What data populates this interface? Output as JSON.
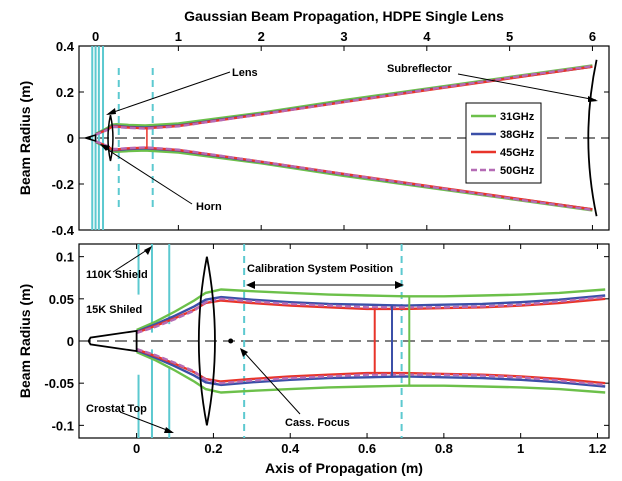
{
  "figure": {
    "title": "Gaussian Beam Propagation, HDPE Single Lens"
  },
  "colors": {
    "31GHz": "#6cc04a",
    "38GHz": "#3b4fa8",
    "45GHz": "#e8342a",
    "50GHz": "#b56bb5",
    "aperture": "#5cc9d0",
    "optics": "#000000"
  },
  "chart_data": [
    {
      "type": "line",
      "panel": "top",
      "title": "Gaussian Beam Propagation, HDPE Single Lens",
      "xlabel": "",
      "ylabel": "Beam Radius (m)",
      "xlim": [
        -0.2,
        6.2
      ],
      "ylim": [
        -0.4,
        0.4
      ],
      "xticks": [
        "0",
        "1",
        "2",
        "3",
        "4",
        "5",
        "6"
      ],
      "xtick_values": [
        0,
        1,
        2,
        3,
        4,
        5,
        6
      ],
      "yticks": [
        "-0.4",
        "-0.2",
        "0",
        "0.2",
        "0.4"
      ],
      "ytick_values": [
        -0.4,
        -0.2,
        0,
        0.2,
        0.4
      ],
      "legend": {
        "placement": "right",
        "entries": [
          "31GHz",
          "38GHz",
          "45GHz",
          "50GHz"
        ]
      },
      "annotations": [
        "Lens",
        "Horn",
        "Subreflector"
      ],
      "series": [
        {
          "name": "31GHz",
          "x": [
            0,
            0.15,
            0.2,
            0.25,
            0.4,
            0.6,
            1.0,
            2.0,
            3.0,
            4.0,
            5.0,
            6.0
          ],
          "y": [
            0.018,
            0.045,
            0.058,
            0.06,
            0.057,
            0.055,
            0.063,
            0.11,
            0.165,
            0.215,
            0.265,
            0.315
          ]
        },
        {
          "name": "38GHz",
          "x": [
            0,
            0.15,
            0.2,
            0.25,
            0.4,
            0.6,
            1.0,
            2.0,
            3.0,
            4.0,
            5.0,
            6.0
          ],
          "y": [
            0.016,
            0.04,
            0.053,
            0.053,
            0.048,
            0.045,
            0.055,
            0.105,
            0.158,
            0.21,
            0.26,
            0.31
          ]
        },
        {
          "name": "45GHz",
          "x": [
            0,
            0.15,
            0.2,
            0.25,
            0.4,
            0.6,
            1.0,
            2.0,
            3.0,
            4.0,
            5.0,
            6.0
          ],
          "y": [
            0.015,
            0.038,
            0.05,
            0.05,
            0.045,
            0.042,
            0.052,
            0.103,
            0.156,
            0.208,
            0.259,
            0.31
          ]
        },
        {
          "name": "50GHz",
          "x": [
            0,
            0.15,
            0.2,
            0.25,
            0.4,
            0.6,
            1.0,
            2.0,
            3.0,
            4.0,
            5.0,
            6.0
          ],
          "y": [
            0.014,
            0.036,
            0.048,
            0.048,
            0.044,
            0.041,
            0.051,
            0.103,
            0.157,
            0.21,
            0.262,
            0.313
          ]
        }
      ]
    },
    {
      "type": "line",
      "panel": "bottom",
      "title": "",
      "xlabel": "Axis of Propagation (m)",
      "ylabel": "Beam Radius (m)",
      "xlim": [
        -0.15,
        1.23
      ],
      "ylim": [
        -0.115,
        0.115
      ],
      "xticks": [
        "0",
        "0.2",
        "0.4",
        "0.6",
        "0.8",
        "1",
        "1.2"
      ],
      "xtick_values": [
        0,
        0.2,
        0.4,
        0.6,
        0.8,
        1.0,
        1.2
      ],
      "yticks": [
        "-0.1",
        "-0.05",
        "0",
        "0.05",
        "0.1"
      ],
      "ytick_values": [
        -0.1,
        -0.05,
        0,
        0.05,
        0.1
      ],
      "annotations": [
        "110K Shield",
        "15K Shiled",
        "Crostat Top",
        "Calibration System Position",
        "Cass. Focus"
      ],
      "series": [
        {
          "name": "31GHz",
          "x": [
            0,
            0.05,
            0.1,
            0.15,
            0.18,
            0.22,
            0.3,
            0.4,
            0.5,
            0.6,
            0.7,
            0.8,
            0.9,
            1.0,
            1.1,
            1.22
          ],
          "y": [
            0.013,
            0.023,
            0.035,
            0.048,
            0.057,
            0.061,
            0.059,
            0.057,
            0.055,
            0.054,
            0.053,
            0.053,
            0.054,
            0.055,
            0.057,
            0.061
          ]
        },
        {
          "name": "38GHz",
          "x": [
            0,
            0.05,
            0.1,
            0.15,
            0.18,
            0.22,
            0.3,
            0.4,
            0.5,
            0.6,
            0.7,
            0.8,
            0.9,
            1.0,
            1.1,
            1.22
          ],
          "y": [
            0.011,
            0.02,
            0.03,
            0.041,
            0.049,
            0.052,
            0.049,
            0.046,
            0.044,
            0.043,
            0.042,
            0.043,
            0.044,
            0.046,
            0.049,
            0.054
          ]
        },
        {
          "name": "45GHz",
          "x": [
            0,
            0.05,
            0.1,
            0.15,
            0.18,
            0.22,
            0.3,
            0.4,
            0.5,
            0.6,
            0.7,
            0.8,
            0.9,
            1.0,
            1.1,
            1.22
          ],
          "y": [
            0.01,
            0.018,
            0.027,
            0.037,
            0.045,
            0.048,
            0.045,
            0.042,
            0.04,
            0.038,
            0.038,
            0.039,
            0.04,
            0.042,
            0.045,
            0.05
          ]
        },
        {
          "name": "50GHz",
          "x": [
            0,
            0.05,
            0.1,
            0.15,
            0.18,
            0.22,
            0.3,
            0.4,
            0.5,
            0.6,
            0.7,
            0.8,
            0.9,
            1.0,
            1.1,
            1.22
          ],
          "y": [
            0.0095,
            0.017,
            0.026,
            0.036,
            0.046,
            0.05,
            0.047,
            0.044,
            0.042,
            0.04,
            0.04,
            0.04,
            0.041,
            0.043,
            0.047,
            0.052
          ]
        }
      ]
    }
  ]
}
